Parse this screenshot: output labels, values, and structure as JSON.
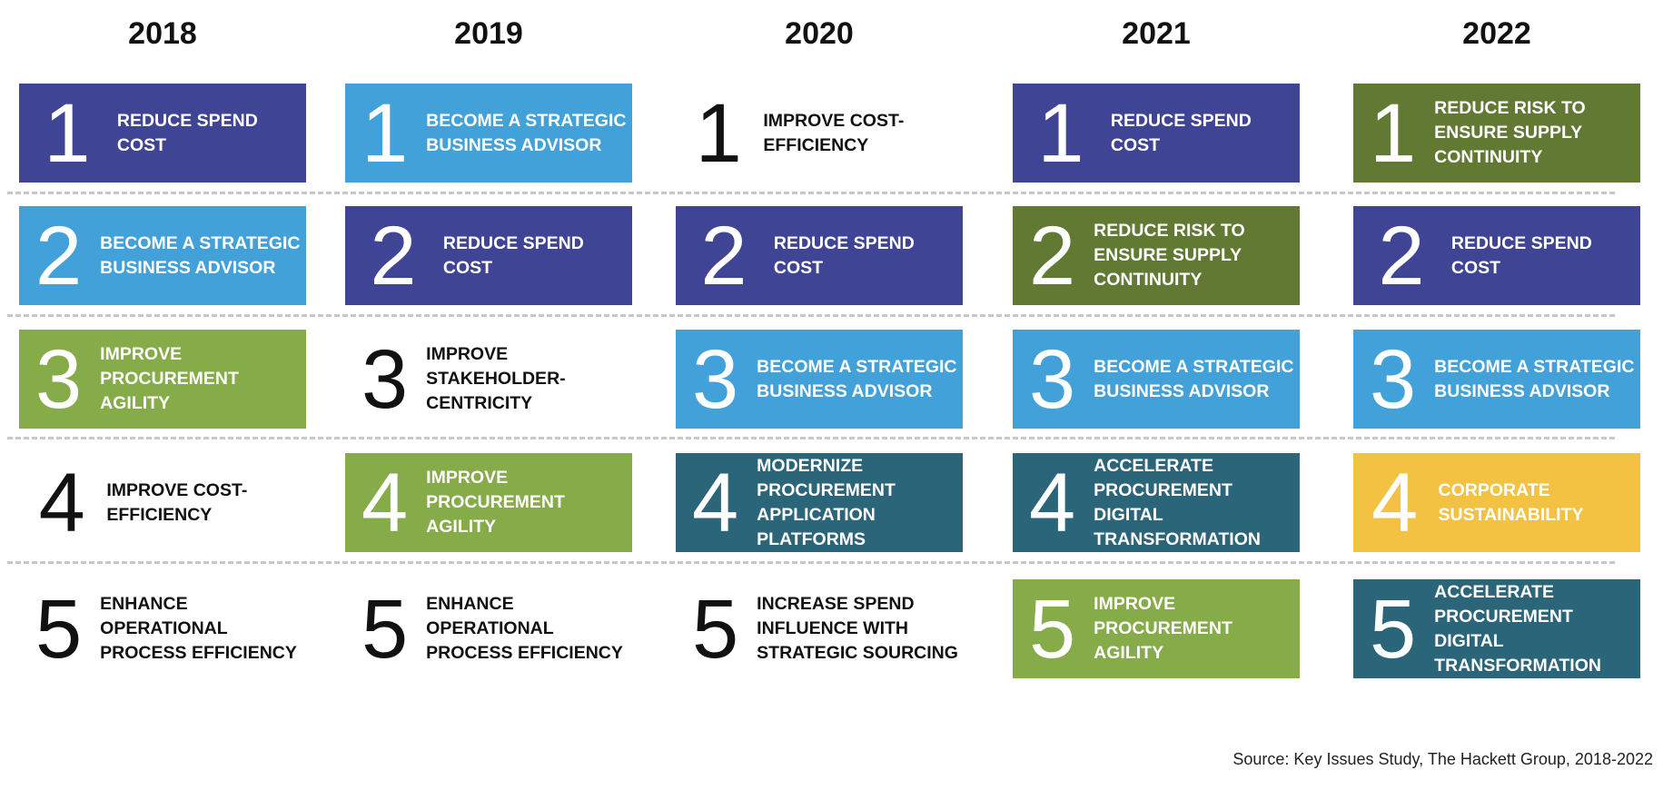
{
  "colors": {
    "purple": "#3f4494",
    "blue": "#43a1da",
    "light_green": "#86ab49",
    "dark_green": "#627934",
    "teal": "#2b6579",
    "yellow": "#f4c243"
  },
  "columns": [
    {
      "year": "2018",
      "items": [
        {
          "rank": "1",
          "label": "Reduce spend cost",
          "color": "purple"
        },
        {
          "rank": "2",
          "label": "Become a strategic business advisor",
          "color": "blue"
        },
        {
          "rank": "3",
          "label": "Improve procurement agility",
          "color": "lgreen"
        },
        {
          "rank": "4",
          "label": "Improve cost-efficiency",
          "color": "none"
        },
        {
          "rank": "5",
          "label": "Enhance operational process efficiency",
          "color": "none"
        }
      ]
    },
    {
      "year": "2019",
      "items": [
        {
          "rank": "1",
          "label": "Become a strategic business advisor",
          "color": "blue"
        },
        {
          "rank": "2",
          "label": "Reduce spend cost",
          "color": "purple"
        },
        {
          "rank": "3",
          "label": "Improve stakeholder-centricity",
          "color": "none"
        },
        {
          "rank": "4",
          "label": "Improve procurement agility",
          "color": "lgreen"
        },
        {
          "rank": "5",
          "label": "Enhance operational process efficiency",
          "color": "none"
        }
      ]
    },
    {
      "year": "2020",
      "items": [
        {
          "rank": "1",
          "label": "Improve cost-efficiency",
          "color": "none"
        },
        {
          "rank": "2",
          "label": "Reduce spend cost",
          "color": "purple"
        },
        {
          "rank": "3",
          "label": "Become a strategic business advisor",
          "color": "blue"
        },
        {
          "rank": "4",
          "label": "Modernize procurement application platforms",
          "color": "teal"
        },
        {
          "rank": "5",
          "label": "Increase spend influence with strategic sourcing",
          "color": "none"
        }
      ]
    },
    {
      "year": "2021",
      "items": [
        {
          "rank": "1",
          "label": "Reduce spend cost",
          "color": "purple"
        },
        {
          "rank": "2",
          "label": "Reduce risk to ensure supply continuity",
          "color": "dgreen"
        },
        {
          "rank": "3",
          "label": "Become a strategic business advisor",
          "color": "blue"
        },
        {
          "rank": "4",
          "label": "Accelerate procurement digital transformation",
          "color": "teal"
        },
        {
          "rank": "5",
          "label": "Improve procurement agility",
          "color": "lgreen"
        }
      ]
    },
    {
      "year": "2022",
      "items": [
        {
          "rank": "1",
          "label": "Reduce risk to ensure supply continuity",
          "color": "dgreen"
        },
        {
          "rank": "2",
          "label": "Reduce spend cost",
          "color": "purple"
        },
        {
          "rank": "3",
          "label": "Become a strategic business advisor",
          "color": "blue"
        },
        {
          "rank": "4",
          "label": "Corporate sustainability",
          "color": "yellow"
        },
        {
          "rank": "5",
          "label": "Accelerate procurement digital transformation",
          "color": "teal"
        }
      ]
    }
  ],
  "source": "Source: Key Issues Study, The Hackett Group, 2018-2022"
}
